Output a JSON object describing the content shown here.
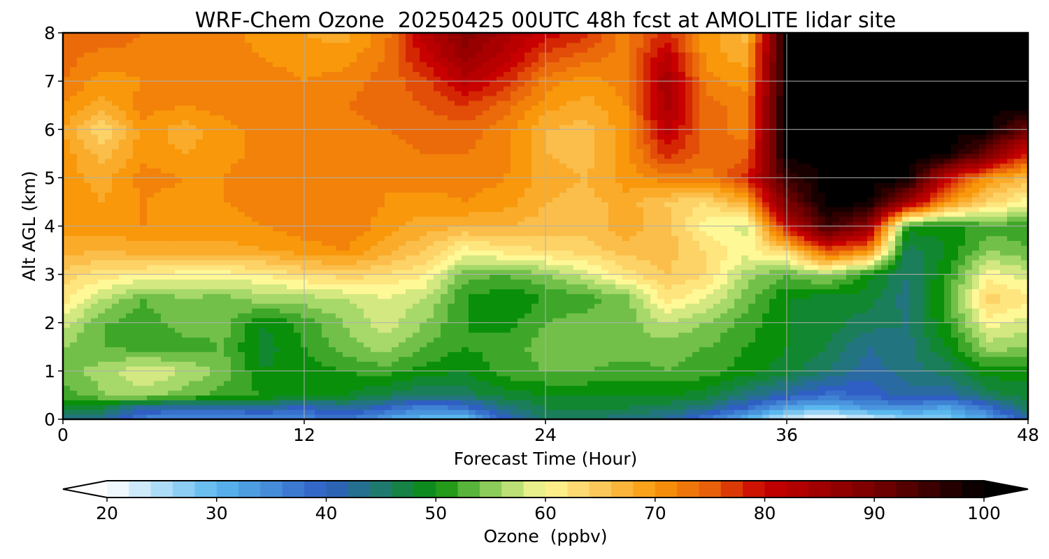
{
  "chart_data": {
    "type": "heatmap",
    "title": "WRF-Chem Ozone  20250425 00UTC 48h fcst at AMOLITE lidar site",
    "xlabel": "Forecast Time (Hour)",
    "ylabel": "Alt AGL (km)",
    "xlim": [
      0,
      48
    ],
    "ylim": [
      0,
      8
    ],
    "x_ticks": [
      0,
      12,
      24,
      36,
      48
    ],
    "y_ticks": [
      0,
      1,
      2,
      3,
      4,
      5,
      6,
      7,
      8
    ],
    "grid": true,
    "colorbar": {
      "label": "Ozone  (ppbv)",
      "range": [
        20,
        100
      ],
      "ticks": [
        20,
        30,
        40,
        50,
        60,
        70,
        80,
        90,
        100
      ],
      "extend": "both",
      "stops": [
        {
          "v": 20,
          "c": "#ffffff"
        },
        {
          "v": 30,
          "c": "#5ab8ee"
        },
        {
          "v": 40,
          "c": "#2f5fc4"
        },
        {
          "v": 45,
          "c": "#1f7a6e"
        },
        {
          "v": 50,
          "c": "#0a8f0a"
        },
        {
          "v": 56,
          "c": "#a6d86a"
        },
        {
          "v": 60,
          "c": "#fff896"
        },
        {
          "v": 65,
          "c": "#fcc85a"
        },
        {
          "v": 70,
          "c": "#f8980a"
        },
        {
          "v": 75,
          "c": "#e8600a"
        },
        {
          "v": 80,
          "c": "#c80000"
        },
        {
          "v": 90,
          "c": "#780000"
        },
        {
          "v": 100,
          "c": "#000000"
        }
      ]
    },
    "times": [
      0,
      2,
      4,
      6,
      8,
      10,
      12,
      14,
      16,
      18,
      20,
      22,
      24,
      26,
      28,
      30,
      32,
      34,
      36,
      38,
      40,
      42,
      44,
      46,
      48
    ],
    "altitudes": [
      0,
      0.25,
      0.5,
      1,
      1.5,
      2,
      2.5,
      3,
      3.5,
      4,
      4.5,
      5,
      5.5,
      6,
      6.5,
      7,
      7.5,
      8
    ],
    "values": [
      [
        42,
        43,
        36,
        34,
        34,
        35,
        35,
        38,
        32,
        29,
        29,
        40,
        45,
        45,
        44,
        42,
        37,
        30,
        22,
        20,
        22,
        26,
        28,
        32,
        42
      ],
      [
        48,
        47,
        42,
        41,
        42,
        42,
        40,
        43,
        40,
        36,
        38,
        44,
        47,
        47,
        47,
        46,
        44,
        39,
        32,
        30,
        34,
        35,
        32,
        38,
        46
      ],
      [
        52,
        55,
        56,
        54,
        52,
        51,
        50,
        49,
        47,
        45,
        46,
        48,
        49,
        49,
        49,
        49,
        48,
        44,
        41,
        38,
        39,
        42,
        41,
        46,
        48
      ],
      [
        54,
        56,
        59,
        57,
        54,
        49,
        50,
        51,
        52,
        50,
        49,
        52,
        53,
        53,
        52,
        53,
        52,
        50,
        48,
        45,
        42,
        44,
        46,
        50,
        50
      ],
      [
        55,
        53,
        52,
        52,
        53,
        48,
        51,
        54,
        56,
        53,
        51,
        52,
        54,
        55,
        54,
        54,
        53,
        51,
        49,
        47,
        43,
        44,
        49,
        56,
        55
      ],
      [
        58,
        53,
        52,
        54,
        54,
        49,
        52,
        55,
        58,
        55,
        51,
        50,
        53,
        54,
        54,
        57,
        55,
        52,
        49,
        48,
        46,
        45,
        51,
        60,
        58
      ],
      [
        62,
        57,
        53,
        55,
        54,
        56,
        56,
        57,
        59,
        57,
        51,
        49,
        51,
        52,
        54,
        62,
        59,
        54,
        49,
        48,
        48,
        44,
        52,
        64,
        62
      ],
      [
        64,
        62,
        61,
        60,
        60,
        61,
        63,
        64,
        63,
        61,
        54,
        53,
        55,
        58,
        62,
        65,
        63,
        56,
        53,
        56,
        50,
        45,
        51,
        60,
        58
      ],
      [
        68,
        67,
        68,
        68,
        68,
        69,
        70,
        71,
        68,
        65,
        60,
        62,
        63,
        64,
        66,
        66,
        63,
        60,
        64,
        76,
        72,
        46,
        49,
        55,
        53
      ],
      [
        70,
        70,
        71,
        71,
        70,
        71,
        72,
        73,
        70,
        68,
        67,
        67,
        66,
        66,
        68,
        66,
        60,
        58,
        80,
        95,
        88,
        50,
        50,
        52,
        52
      ],
      [
        71,
        69,
        71,
        70,
        71,
        72,
        73,
        72,
        71,
        70,
        71,
        70,
        67,
        66,
        68,
        65,
        63,
        68,
        90,
        100,
        100,
        85,
        70,
        64,
        60
      ],
      [
        70,
        68,
        72,
        71,
        71,
        73,
        72,
        71,
        71,
        72,
        72,
        71,
        68,
        67,
        70,
        72,
        72,
        78,
        95,
        100,
        100,
        100,
        80,
        70,
        66
      ],
      [
        70,
        66,
        70,
        69,
        70,
        72,
        72,
        72,
        72,
        73,
        73,
        72,
        67,
        66,
        70,
        78,
        74,
        74,
        100,
        100,
        100,
        100,
        100,
        90,
        78
      ],
      [
        69,
        63,
        70,
        68,
        70,
        72,
        71,
        72,
        73,
        74,
        74,
        72,
        67,
        66,
        70,
        82,
        74,
        72,
        100,
        100,
        100,
        100,
        100,
        100,
        90
      ],
      [
        71,
        68,
        72,
        71,
        72,
        73,
        72,
        73,
        74,
        75,
        77,
        74,
        70,
        68,
        71,
        84,
        74,
        72,
        100,
        100,
        100,
        100,
        100,
        100,
        100
      ],
      [
        73,
        70,
        71,
        71,
        72,
        72,
        71,
        72,
        74,
        76,
        82,
        78,
        72,
        70,
        72,
        85,
        72,
        70,
        100,
        100,
        100,
        100,
        100,
        100,
        100
      ],
      [
        74,
        72,
        72,
        71,
        72,
        71,
        70,
        70,
        73,
        80,
        86,
        82,
        76,
        74,
        72,
        82,
        70,
        68,
        100,
        100,
        100,
        100,
        100,
        100,
        100
      ],
      [
        74,
        75,
        73,
        72,
        72,
        70,
        69,
        68,
        72,
        82,
        88,
        84,
        80,
        78,
        72,
        78,
        70,
        66,
        100,
        100,
        100,
        100,
        100,
        100,
        100
      ]
    ]
  }
}
